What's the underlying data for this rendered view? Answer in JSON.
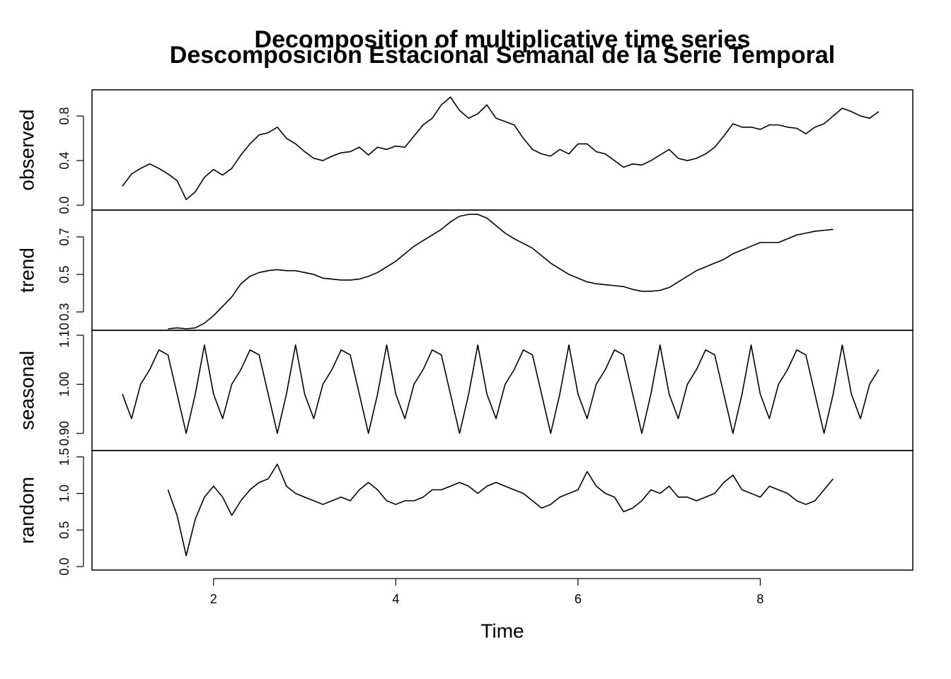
{
  "chart_data": [
    {
      "type": "line",
      "title": "Decomposition of multiplicative time series",
      "subtitle": "Descomposicion Estacional Semanal de la Serie Temporal",
      "ylabel": "observed",
      "color": "#000000",
      "x": [
        1.0,
        1.1,
        1.2,
        1.3,
        1.4,
        1.5,
        1.6,
        1.7,
        1.8,
        1.9,
        2.0,
        2.1,
        2.2,
        2.3,
        2.4,
        2.5,
        2.6,
        2.7,
        2.8,
        2.9,
        3.0,
        3.1,
        3.2,
        3.3,
        3.4,
        3.5,
        3.6,
        3.7,
        3.8,
        3.9,
        4.0,
        4.1,
        4.2,
        4.3,
        4.4,
        4.5,
        4.6,
        4.7,
        4.8,
        4.9,
        5.0,
        5.1,
        5.2,
        5.3,
        5.4,
        5.5,
        5.6,
        5.7,
        5.8,
        5.9,
        6.0,
        6.1,
        6.2,
        6.3,
        6.4,
        6.5,
        6.6,
        6.7,
        6.8,
        6.9,
        7.0,
        7.1,
        7.2,
        7.3,
        7.4,
        7.5,
        7.6,
        7.7,
        7.8,
        7.9,
        8.0,
        8.1,
        8.2,
        8.3,
        8.4,
        8.5,
        8.6,
        8.7,
        8.8,
        8.9,
        9.0,
        9.1,
        9.2,
        9.3
      ],
      "values": [
        0.17,
        0.28,
        0.33,
        0.37,
        0.33,
        0.28,
        0.22,
        0.05,
        0.12,
        0.25,
        0.32,
        0.27,
        0.33,
        0.45,
        0.55,
        0.63,
        0.65,
        0.7,
        0.6,
        0.55,
        0.48,
        0.42,
        0.4,
        0.44,
        0.47,
        0.48,
        0.52,
        0.45,
        0.52,
        0.5,
        0.53,
        0.52,
        0.62,
        0.72,
        0.78,
        0.9,
        0.97,
        0.85,
        0.78,
        0.82,
        0.9,
        0.78,
        0.75,
        0.72,
        0.6,
        0.5,
        0.46,
        0.44,
        0.5,
        0.46,
        0.55,
        0.55,
        0.48,
        0.46,
        0.4,
        0.34,
        0.37,
        0.36,
        0.4,
        0.45,
        0.5,
        0.42,
        0.4,
        0.42,
        0.46,
        0.52,
        0.62,
        0.73,
        0.7,
        0.7,
        0.68,
        0.72,
        0.72,
        0.7,
        0.69,
        0.64,
        0.7,
        0.73,
        0.8,
        0.87,
        0.84,
        0.8,
        0.78,
        0.84
      ],
      "xlim": [
        0.666,
        9.674
      ],
      "ylim": [
        -0.044,
        1.035
      ],
      "yticks": [
        {
          "value": 0,
          "label": "0.0"
        },
        0.4,
        0.8
      ]
    },
    {
      "type": "line",
      "ylabel": "trend",
      "color": "#000000",
      "x": [
        1.5,
        1.6,
        1.7,
        1.8,
        1.9,
        2.0,
        2.1,
        2.2,
        2.3,
        2.4,
        2.5,
        2.6,
        2.7,
        2.8,
        2.9,
        3.0,
        3.1,
        3.2,
        3.3,
        3.4,
        3.5,
        3.6,
        3.7,
        3.8,
        3.9,
        4.0,
        4.1,
        4.2,
        4.3,
        4.4,
        4.5,
        4.6,
        4.7,
        4.8,
        4.9,
        5.0,
        5.1,
        5.2,
        5.3,
        5.4,
        5.5,
        5.6,
        5.7,
        5.8,
        5.9,
        6.0,
        6.1,
        6.2,
        6.3,
        6.4,
        6.5,
        6.6,
        6.7,
        6.8,
        6.9,
        7.0,
        7.1,
        7.2,
        7.3,
        7.4,
        7.5,
        7.6,
        7.7,
        7.8,
        7.9,
        8.0,
        8.1,
        8.2,
        8.3,
        8.4,
        8.5,
        8.6,
        8.7,
        8.8
      ],
      "values": [
        0.21,
        0.215,
        0.21,
        0.215,
        0.24,
        0.28,
        0.33,
        0.38,
        0.45,
        0.49,
        0.51,
        0.52,
        0.525,
        0.52,
        0.52,
        0.51,
        0.5,
        0.48,
        0.475,
        0.47,
        0.47,
        0.475,
        0.49,
        0.51,
        0.54,
        0.57,
        0.61,
        0.65,
        0.68,
        0.71,
        0.74,
        0.78,
        0.81,
        0.82,
        0.82,
        0.8,
        0.76,
        0.72,
        0.69,
        0.665,
        0.64,
        0.6,
        0.56,
        0.53,
        0.5,
        0.48,
        0.46,
        0.45,
        0.445,
        0.44,
        0.435,
        0.42,
        0.41,
        0.41,
        0.415,
        0.43,
        0.46,
        0.49,
        0.52,
        0.54,
        0.56,
        0.58,
        0.61,
        0.63,
        0.65,
        0.67,
        0.67,
        0.67,
        0.69,
        0.71,
        0.72,
        0.73,
        0.735,
        0.74
      ],
      "xlim": [
        0.666,
        9.674
      ],
      "ylim": [
        0.202,
        0.843
      ],
      "yticks": [
        0.3,
        0.5,
        0.7
      ]
    },
    {
      "type": "line",
      "ylabel": "seasonal",
      "color": "#000000",
      "x": [
        1.0,
        1.1,
        1.2,
        1.3,
        1.4,
        1.5,
        1.6,
        1.7,
        1.8,
        1.9,
        2.0,
        2.1,
        2.2,
        2.3,
        2.4,
        2.5,
        2.6,
        2.7,
        2.8,
        2.9,
        3.0,
        3.1,
        3.2,
        3.3,
        3.4,
        3.5,
        3.6,
        3.7,
        3.8,
        3.9,
        4.0,
        4.1,
        4.2,
        4.3,
        4.4,
        4.5,
        4.6,
        4.7,
        4.8,
        4.9,
        5.0,
        5.1,
        5.2,
        5.3,
        5.4,
        5.5,
        5.6,
        5.7,
        5.8,
        5.9,
        6.0,
        6.1,
        6.2,
        6.3,
        6.4,
        6.5,
        6.6,
        6.7,
        6.8,
        6.9,
        7.0,
        7.1,
        7.2,
        7.3,
        7.4,
        7.5,
        7.6,
        7.7,
        7.8,
        7.9,
        8.0,
        8.1,
        8.2,
        8.3,
        8.4,
        8.5,
        8.6,
        8.7,
        8.8,
        8.9,
        9.0,
        9.1,
        9.2,
        9.3
      ],
      "values": [
        0.98,
        0.93,
        1.0,
        1.03,
        1.07,
        1.06,
        0.98,
        0.9,
        0.98,
        1.08,
        0.98,
        0.93,
        1.0,
        1.03,
        1.07,
        1.06,
        0.98,
        0.9,
        0.98,
        1.08,
        0.98,
        0.93,
        1.0,
        1.03,
        1.07,
        1.06,
        0.98,
        0.9,
        0.98,
        1.08,
        0.98,
        0.93,
        1.0,
        1.03,
        1.07,
        1.06,
        0.98,
        0.9,
        0.98,
        1.08,
        0.98,
        0.93,
        1.0,
        1.03,
        1.07,
        1.06,
        0.98,
        0.9,
        0.98,
        1.08,
        0.98,
        0.93,
        1.0,
        1.03,
        1.07,
        1.06,
        0.98,
        0.9,
        0.98,
        1.08,
        0.98,
        0.93,
        1.0,
        1.03,
        1.07,
        1.06,
        0.98,
        0.9,
        0.98,
        1.08,
        0.98,
        0.93,
        1.0,
        1.03,
        1.07,
        1.06,
        0.98,
        0.9,
        0.98,
        1.08,
        0.98,
        0.93,
        1.0,
        1.03
      ],
      "xlim": [
        0.666,
        9.674
      ],
      "ylim": [
        0.865,
        1.11
      ],
      "yticks": [
        {
          "value": 0.9,
          "label": "0.90"
        },
        {
          "value": 1,
          "label": "1.00"
        },
        {
          "value": 1.1,
          "label": "1.10"
        }
      ]
    },
    {
      "type": "line",
      "ylabel": "random",
      "xlabel": "Time",
      "color": "#000000",
      "x": [
        1.5,
        1.6,
        1.7,
        1.8,
        1.9,
        2.0,
        2.1,
        2.2,
        2.3,
        2.4,
        2.5,
        2.6,
        2.7,
        2.8,
        2.9,
        3.0,
        3.1,
        3.2,
        3.3,
        3.4,
        3.5,
        3.6,
        3.7,
        3.8,
        3.9,
        4.0,
        4.1,
        4.2,
        4.3,
        4.4,
        4.5,
        4.6,
        4.7,
        4.8,
        4.9,
        5.0,
        5.1,
        5.2,
        5.3,
        5.4,
        5.5,
        5.6,
        5.7,
        5.8,
        5.9,
        6.0,
        6.1,
        6.2,
        6.3,
        6.4,
        6.5,
        6.6,
        6.7,
        6.8,
        6.9,
        7.0,
        7.1,
        7.2,
        7.3,
        7.4,
        7.5,
        7.6,
        7.7,
        7.8,
        7.9,
        8.0,
        8.1,
        8.2,
        8.3,
        8.4,
        8.5,
        8.6,
        8.7,
        8.8
      ],
      "values": [
        1.05,
        0.7,
        0.15,
        0.65,
        0.95,
        1.1,
        0.95,
        0.7,
        0.9,
        1.05,
        1.15,
        1.2,
        1.4,
        1.1,
        1.0,
        0.95,
        0.9,
        0.85,
        0.9,
        0.95,
        0.9,
        1.05,
        1.15,
        1.05,
        0.9,
        0.85,
        0.9,
        0.9,
        0.95,
        1.05,
        1.05,
        1.1,
        1.15,
        1.1,
        1.0,
        1.1,
        1.15,
        1.1,
        1.05,
        1.0,
        0.9,
        0.8,
        0.85,
        0.95,
        1.0,
        1.05,
        1.3,
        1.1,
        1.0,
        0.95,
        0.75,
        0.8,
        0.9,
        1.05,
        1.0,
        1.1,
        0.95,
        0.95,
        0.9,
        0.95,
        1.0,
        1.15,
        1.25,
        1.05,
        1.0,
        0.95,
        1.1,
        1.05,
        1.0,
        0.9,
        0.85,
        0.9,
        1.05,
        1.2
      ],
      "xlim": [
        0.666,
        9.674
      ],
      "ylim": [
        -0.048,
        1.587
      ],
      "yticks": [
        {
          "value": 0,
          "label": "0.0"
        },
        {
          "value": 0.5,
          "label": "0.5"
        },
        {
          "value": 1,
          "label": "1.0"
        },
        {
          "value": 1.5,
          "label": "1.5"
        }
      ],
      "xticks": [
        2,
        4,
        6,
        8
      ]
    }
  ]
}
